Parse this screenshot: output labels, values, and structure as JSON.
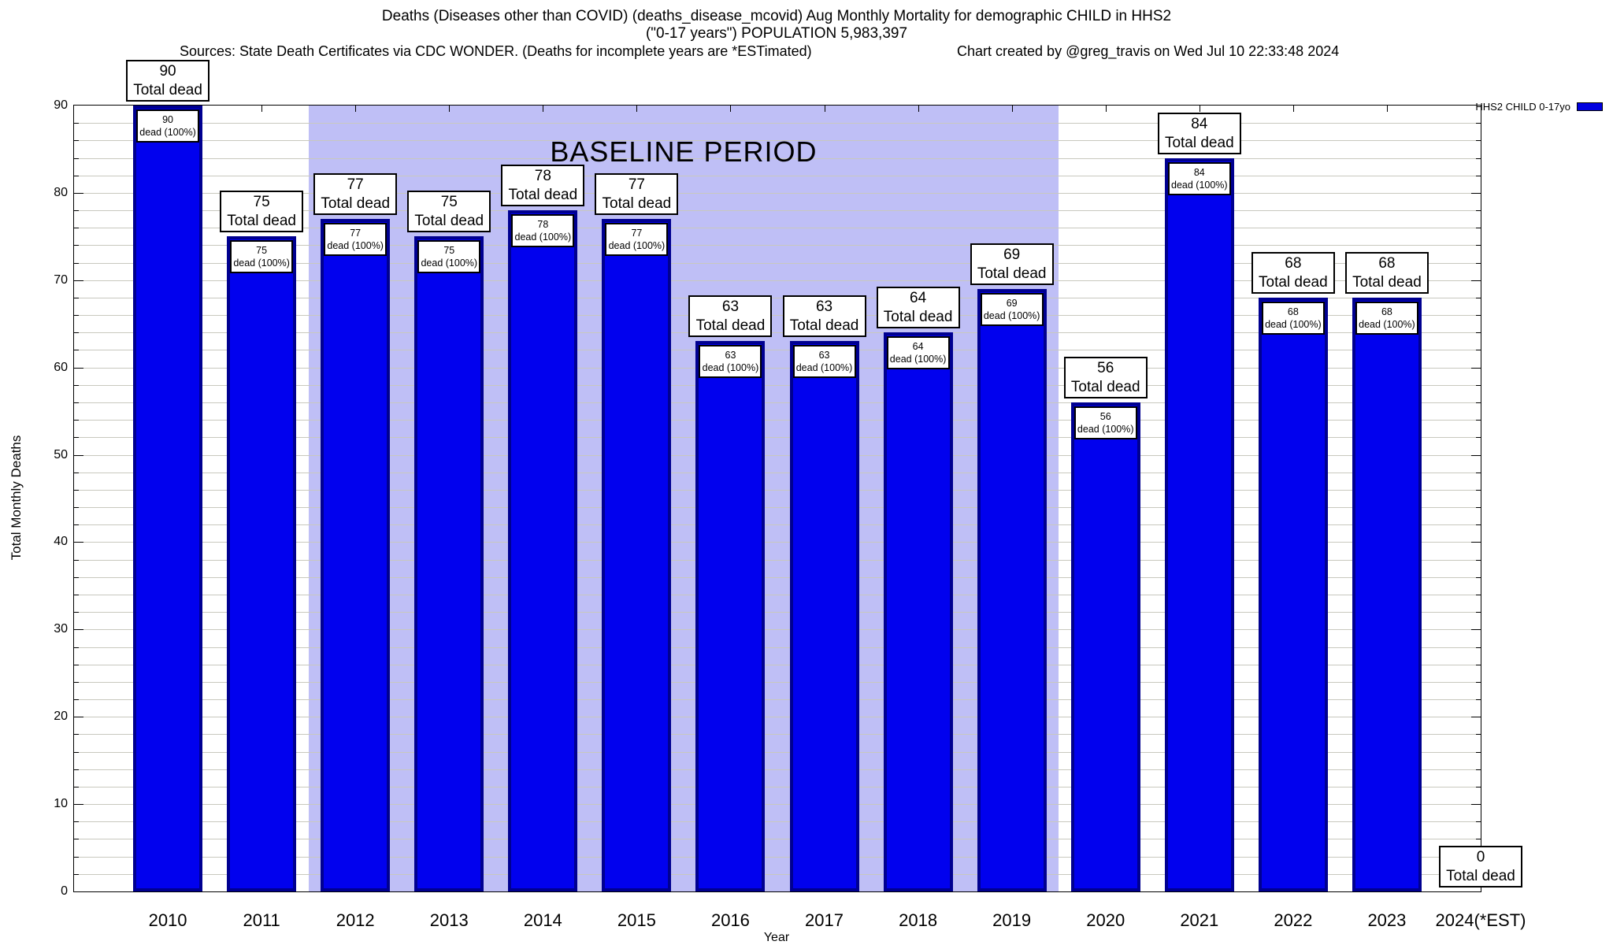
{
  "header": {
    "title_line1": "Deaths (Diseases other than COVID) (deaths_disease_mcovid) Aug Monthly Mortality for demographic CHILD in HHS2",
    "title_line2": "(\"0-17 years\") POPULATION 5,983,397",
    "sources": "Sources: State Death Certificates via CDC WONDER. (Deaths for incomplete years are *ESTimated)",
    "created_by": "Chart created by @greg_travis on Wed Jul 10 22:33:48 2024"
  },
  "chart_data": {
    "type": "bar",
    "title": "Deaths (Diseases other than COVID) (deaths_disease_mcovid) Aug Monthly Mortality for demographic CHILD in HHS2 (\"0-17 years\") POPULATION 5,983,397",
    "xlabel": "Year",
    "ylabel": "Total Monthly Deaths",
    "ylim": [
      0,
      90
    ],
    "y_major_ticks": [
      0,
      10,
      20,
      30,
      40,
      50,
      60,
      70,
      80,
      90
    ],
    "y_minor_step": 2,
    "grid": true,
    "categories": [
      "2010",
      "2011",
      "2012",
      "2013",
      "2014",
      "2015",
      "2016",
      "2017",
      "2018",
      "2019",
      "2020",
      "2021",
      "2022",
      "2023",
      "2024(*EST)"
    ],
    "series": [
      {
        "name": "HHS2 CHILD 0-17yo",
        "values": [
          90,
          75,
          77,
          75,
          78,
          77,
          63,
          63,
          64,
          69,
          56,
          84,
          68,
          68,
          0
        ]
      }
    ],
    "bar_top_label_suffix": "Total dead",
    "bar_inner_label_suffix": "dead (100%)",
    "baseline": {
      "label": "BASELINE PERIOD",
      "from_category": "2012",
      "to_category": "2019"
    },
    "legend": {
      "label": "HHS2 CHILD 0-17yo",
      "position": "top-right"
    },
    "colors": {
      "bar": "#0101ee",
      "bar_border": "#000090",
      "baseline_band": "#bfbff6",
      "grid": "#c8c8be",
      "label_box_bg": "#ffffff",
      "label_box_border": "#000000",
      "legend_swatch": "#0000e0"
    }
  }
}
